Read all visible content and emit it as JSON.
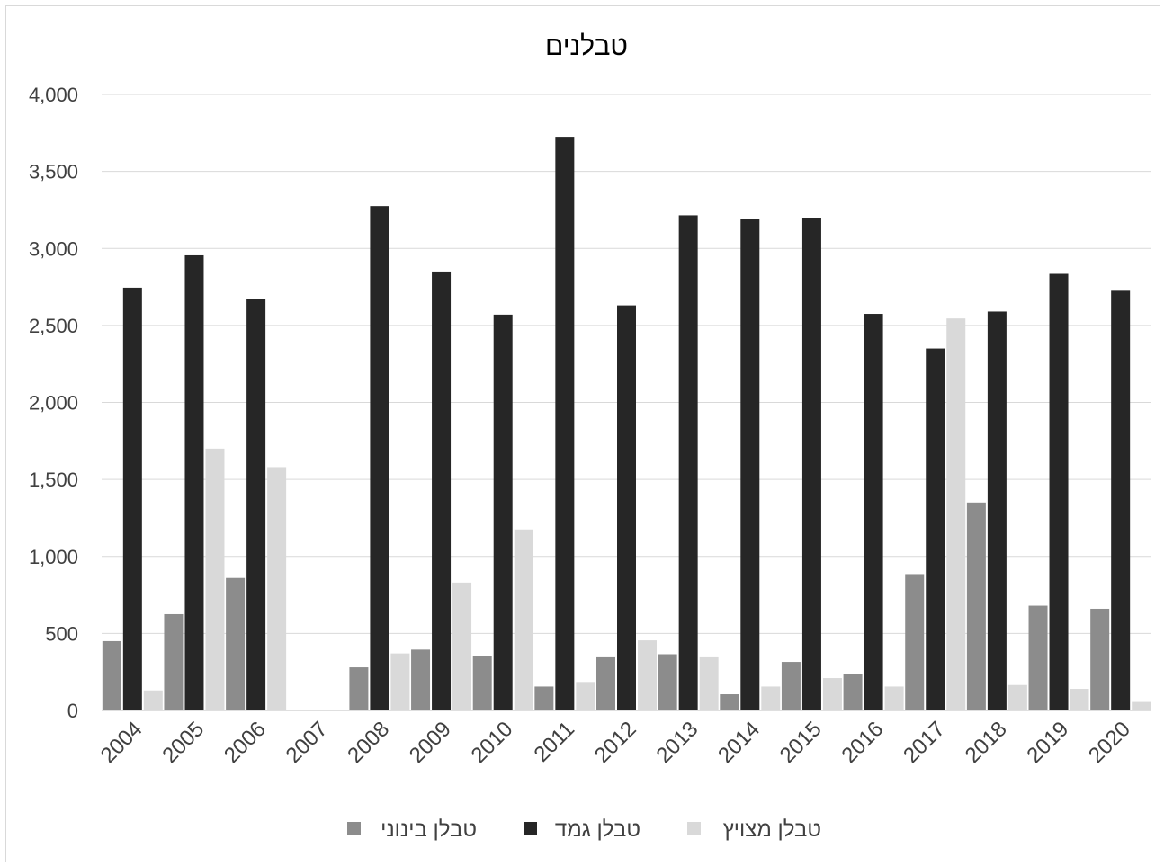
{
  "chart_data": {
    "type": "bar",
    "title": "טבלנים",
    "xlabel": "",
    "ylabel": "",
    "ylim": [
      0,
      4000
    ],
    "yticks": [
      0,
      500,
      1000,
      1500,
      2000,
      2500,
      3000,
      3500,
      4000
    ],
    "ytick_labels": [
      "0",
      "500",
      "1,000",
      "1,500",
      "2,000",
      "2,500",
      "3,000",
      "3,500",
      "4,000"
    ],
    "grid": true,
    "legend_position": "bottom",
    "categories": [
      "2004",
      "2005",
      "2006",
      "2007",
      "2008",
      "2009",
      "2010",
      "2011",
      "2012",
      "2013",
      "2014",
      "2015",
      "2016",
      "2017",
      "2018",
      "2019",
      "2020"
    ],
    "series": [
      {
        "name": "טבלן בינוני",
        "color": "#8c8c8c",
        "values": [
          450,
          625,
          860,
          0,
          280,
          395,
          355,
          155,
          345,
          365,
          105,
          315,
          235,
          885,
          1350,
          680,
          660
        ]
      },
      {
        "name": "טבלן גמד",
        "color": "#262626",
        "values": [
          2745,
          2955,
          2670,
          0,
          3275,
          2850,
          2570,
          3725,
          2630,
          3215,
          3190,
          3200,
          2575,
          2350,
          2590,
          2835,
          2725
        ]
      },
      {
        "name": "טבלן מצויץ",
        "color": "#d9d9d9",
        "values": [
          130,
          1700,
          1580,
          0,
          370,
          830,
          1175,
          185,
          455,
          345,
          155,
          210,
          155,
          2545,
          165,
          140,
          55
        ]
      }
    ]
  }
}
